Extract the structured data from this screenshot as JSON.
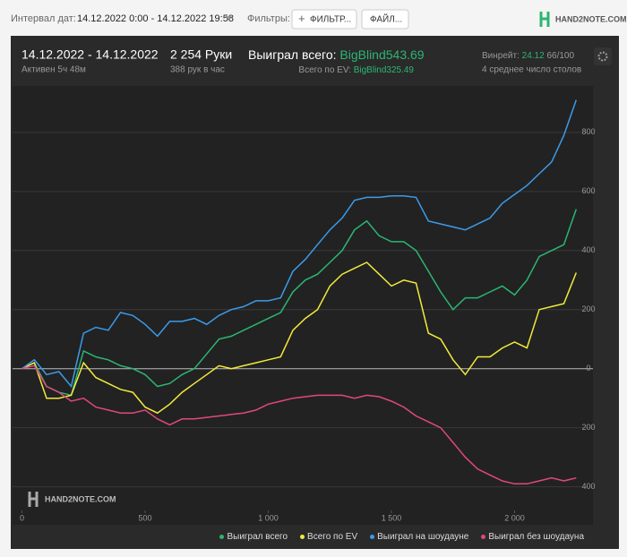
{
  "toolbar": {
    "date_label": "Интервал дат:",
    "date_range": "14.12.2022 0:00 - 14.12.2022 19:58",
    "filters_label": "Фильтры:",
    "filter_button": "ФИЛЬТР...",
    "file_button": "ФАЙЛ...",
    "logo": "HAND2NOTE.COM"
  },
  "summary": {
    "period": "14.12.2022 - 14.12.2022",
    "active": "Активен 5ч 48м",
    "hands": "2 254 Руки",
    "hands_per_hour": "388 рук в час",
    "won_label": "Выиграл всего:",
    "won_value": "BigBlind543.69",
    "ev_label": "Всего по EV:",
    "ev_value": "BigBlind325.49",
    "winrate_label": "Винрейт:",
    "winrate_value": "24.12",
    "winrate_unit": "66/100",
    "tables": "4 среднее число столов",
    "watermark": "HAND2NOTE.COM"
  },
  "chart_data": {
    "type": "line",
    "x": [
      0,
      50,
      100,
      150,
      200,
      250,
      300,
      350,
      400,
      450,
      500,
      550,
      600,
      650,
      700,
      750,
      800,
      850,
      900,
      950,
      1000,
      1050,
      1100,
      1150,
      1200,
      1250,
      1300,
      1350,
      1400,
      1450,
      1500,
      1550,
      1600,
      1650,
      1700,
      1750,
      1800,
      1850,
      1900,
      1950,
      2000,
      2050,
      2100,
      2150,
      2200,
      2250
    ],
    "series": [
      {
        "name": "Выиграл всего",
        "color": "#2bb673",
        "values": [
          0,
          20,
          -60,
          -80,
          -90,
          60,
          40,
          30,
          10,
          0,
          -20,
          -60,
          -50,
          -20,
          0,
          50,
          100,
          110,
          130,
          150,
          170,
          190,
          260,
          300,
          320,
          360,
          400,
          470,
          500,
          450,
          430,
          430,
          400,
          330,
          260,
          200,
          240,
          240,
          260,
          280,
          250,
          300,
          380,
          400,
          420,
          540
        ]
      },
      {
        "name": "Всего по EV",
        "color": "#f2ea3c",
        "values": [
          0,
          20,
          -100,
          -100,
          -90,
          20,
          -30,
          -50,
          -70,
          -80,
          -130,
          -150,
          -120,
          -80,
          -50,
          -20,
          10,
          0,
          10,
          20,
          30,
          40,
          130,
          170,
          200,
          280,
          320,
          340,
          360,
          320,
          280,
          300,
          290,
          120,
          100,
          30,
          -20,
          40,
          40,
          70,
          90,
          70,
          200,
          210,
          220,
          325
        ]
      },
      {
        "name": "Выиграл на шоудауне",
        "color": "#3b9bea",
        "values": [
          0,
          30,
          -20,
          -10,
          -60,
          120,
          140,
          130,
          190,
          180,
          150,
          110,
          160,
          160,
          170,
          150,
          180,
          200,
          210,
          230,
          230,
          240,
          330,
          370,
          420,
          470,
          510,
          570,
          580,
          580,
          585,
          585,
          580,
          500,
          490,
          480,
          470,
          490,
          510,
          560,
          590,
          620,
          660,
          700,
          790,
          910
        ]
      },
      {
        "name": "Выиграл без шоудауна",
        "color": "#e0487e",
        "values": [
          0,
          10,
          -60,
          -80,
          -110,
          -100,
          -130,
          -140,
          -150,
          -150,
          -140,
          -170,
          -190,
          -170,
          -170,
          -165,
          -160,
          -155,
          -150,
          -140,
          -120,
          -110,
          -100,
          -95,
          -90,
          -90,
          -90,
          -100,
          -90,
          -95,
          -110,
          -130,
          -160,
          -180,
          -200,
          -250,
          -300,
          -340,
          -360,
          -380,
          -390,
          -390,
          -380,
          -370,
          -380,
          -370
        ]
      }
    ],
    "xlim": [
      0,
      2260
    ],
    "ylim": [
      -480,
      930
    ],
    "xticks": [
      0,
      500,
      {
        "value": 1000,
        "label": "1 000"
      },
      {
        "value": 1500,
        "label": "1 500"
      },
      {
        "value": 2000,
        "label": "2 000"
      }
    ],
    "yticks": [
      {
        "value": -400,
        "label": "400"
      },
      {
        "value": -200,
        "label": "200"
      },
      0,
      200,
      400,
      600,
      800
    ],
    "grid": true,
    "legend": "bottom-right"
  }
}
